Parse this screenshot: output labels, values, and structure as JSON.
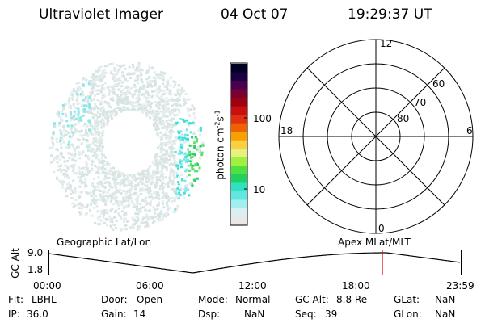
{
  "header": {
    "title": "Ultraviolet Imager",
    "date": "04 Oct 07",
    "time": "19:29:37 UT"
  },
  "colorbar": {
    "unit_label": "photon cm-2s-1",
    "ticks": [
      "100",
      "10"
    ]
  },
  "polar_plot": {
    "hour_labels": [
      "12",
      "18",
      "6",
      "0"
    ],
    "lat_labels": [
      "60",
      "70",
      "80"
    ]
  },
  "timeline": {
    "left_title": "Geographic Lat/Lon",
    "right_title": "Apex MLat/MLT",
    "y_axis_label": "GC Alt",
    "y_ticks": [
      "9.0",
      "1.8"
    ],
    "x_ticks": [
      "00:00",
      "06:00",
      "12:00",
      "18:00",
      "23:59"
    ],
    "marker_color": "#e00000"
  },
  "info": {
    "rows": [
      [
        {
          "key": "Flt:",
          "value": "LBHL"
        },
        {
          "key": "Door:",
          "value": "Open"
        },
        {
          "key": "Mode:",
          "value": "Normal"
        },
        {
          "key": "GC Alt:",
          "value": "8.8 Re"
        },
        {
          "key": "GLat:",
          "value": "NaN"
        }
      ],
      [
        {
          "key": "IP:",
          "value": "36.0"
        },
        {
          "key": "Gain:",
          "value": "14"
        },
        {
          "key": "Dsp:",
          "value": "NaN"
        },
        {
          "key": "Seq:",
          "value": "39"
        },
        {
          "key": "GLon:",
          "value": "NaN"
        }
      ]
    ]
  }
}
